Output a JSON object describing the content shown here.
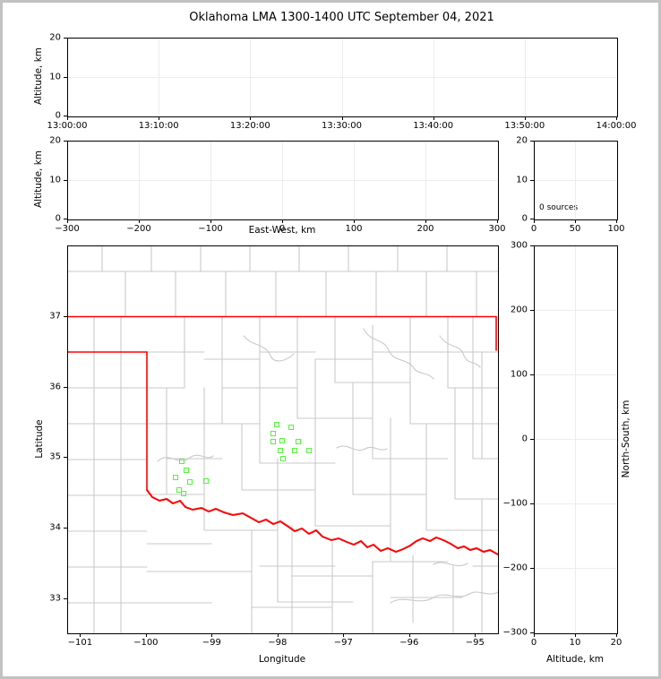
{
  "page": {
    "title": "Oklahoma LMA 1300-1400 UTC September 04, 2021"
  },
  "colors": {
    "source_marker": "#55F23A",
    "state_border": "#FF0000",
    "county_line": "#C9C9C9",
    "grid_line": "#ECECEC",
    "frame": "#000000",
    "page_border": "#C2C2C2"
  },
  "chart_data": [
    {
      "id": "alt_time",
      "type": "scatter",
      "panel": "p1",
      "xlabel": "",
      "ylabel": "Altitude, km",
      "xlim": [
        0,
        360
      ],
      "xtick_vals": [
        0,
        60,
        120,
        180,
        240,
        300,
        360
      ],
      "xtick_labels": [
        "13:00:00",
        "13:10:00",
        "13:20:00",
        "13:30:00",
        "13:40:00",
        "13:50:00",
        "14:00:00"
      ],
      "ylim": [
        0,
        20
      ],
      "ytick_vals": [
        0,
        10,
        20
      ],
      "ytick_labels": [
        "0",
        "10",
        "20"
      ],
      "points": []
    },
    {
      "id": "alt_ew",
      "type": "scatter",
      "panel": "p2",
      "xlabel": "East-West, km",
      "ylabel": "Altitude, km",
      "xlim": [
        -300,
        300
      ],
      "xtick_vals": [
        -300,
        -200,
        -100,
        0,
        100,
        200,
        300
      ],
      "xtick_labels": [
        "−300",
        "−200",
        "−100",
        "0",
        "100",
        "200",
        "300"
      ],
      "ylim": [
        0,
        20
      ],
      "ytick_vals": [
        0,
        10,
        20
      ],
      "ytick_labels": [
        "0",
        "10",
        "20"
      ],
      "points": []
    },
    {
      "id": "source_histogram",
      "type": "line",
      "panel": "p3",
      "annotation": "0 sources",
      "xlabel": "",
      "ylabel": "",
      "xlim": [
        0,
        100
      ],
      "xtick_vals": [
        0,
        50,
        100
      ],
      "xtick_labels": [
        "0",
        "50",
        "100"
      ],
      "ylim": [
        0,
        20
      ],
      "ytick_vals": [
        0,
        10,
        20
      ],
      "ytick_labels": [
        "0",
        "10",
        "20"
      ],
      "points": []
    },
    {
      "id": "plan_map",
      "type": "scatter",
      "panel": "p4",
      "xlabel": "Longitude",
      "ylabel": "Latitude",
      "xlim": [
        -101.195,
        -94.664
      ],
      "xtick_vals": [
        -101,
        -100,
        -99,
        -98,
        -97,
        -96,
        -95
      ],
      "xtick_labels": [
        "−101",
        "−100",
        "−99",
        "−98",
        "−97",
        "−96",
        "−95"
      ],
      "ylim": [
        32.525,
        37.994
      ],
      "ytick_vals": [
        33,
        34,
        35,
        36,
        37
      ],
      "ytick_labels": [
        "33",
        "34",
        "35",
        "36",
        "37"
      ],
      "sources": [
        [
          -98.01,
          35.46
        ],
        [
          -97.8,
          35.43
        ],
        [
          -98.06,
          35.33
        ],
        [
          -98.07,
          35.22
        ],
        [
          -97.93,
          35.23
        ],
        [
          -97.68,
          35.22
        ],
        [
          -97.96,
          35.1
        ],
        [
          -97.74,
          35.1
        ],
        [
          -97.52,
          35.1
        ],
        [
          -97.92,
          34.98
        ],
        [
          -99.45,
          34.94
        ],
        [
          -99.38,
          34.82
        ],
        [
          -99.55,
          34.72
        ],
        [
          -99.33,
          34.65
        ],
        [
          -99.09,
          34.66
        ],
        [
          -99.5,
          34.54
        ],
        [
          -99.42,
          34.49
        ]
      ]
    },
    {
      "id": "ns_alt",
      "type": "scatter",
      "panel": "p5",
      "xlabel": "Altitude, km",
      "ylabel": "North-South, km",
      "xlim": [
        0,
        20
      ],
      "xtick_vals": [
        0,
        10,
        20
      ],
      "xtick_labels": [
        "0",
        "10",
        "20"
      ],
      "ylim": [
        -300,
        300
      ],
      "ytick_vals": [
        -300,
        -200,
        -100,
        0,
        100,
        200,
        300
      ],
      "ytick_labels": [
        "−300",
        "−200",
        "−100",
        "0",
        "100",
        "200",
        "300"
      ],
      "points": []
    }
  ]
}
